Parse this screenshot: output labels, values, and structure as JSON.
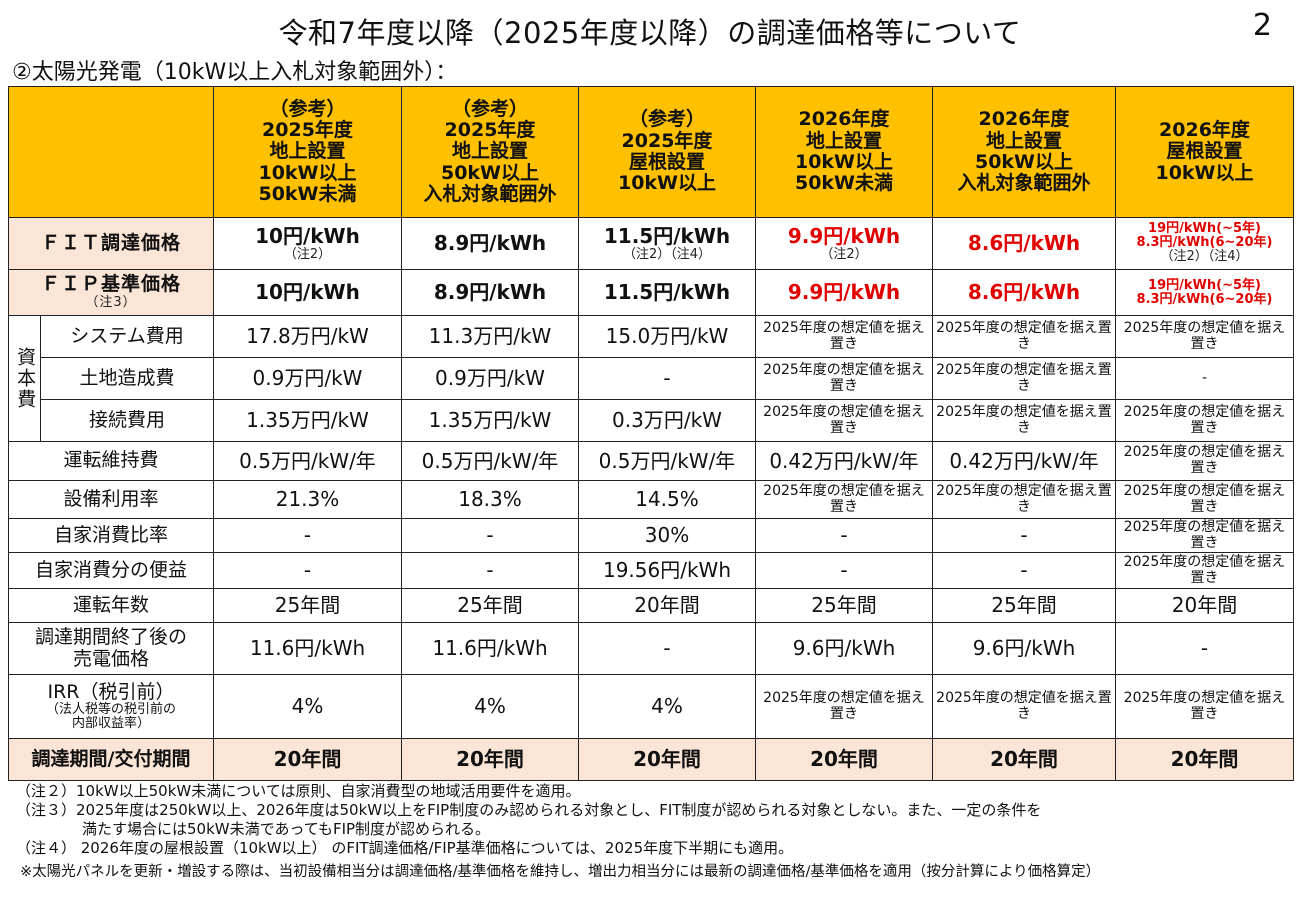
{
  "title": "令和7年度以降（2025年度以降）の調達価格等について",
  "page_number": "2",
  "subtitle": "②太陽光発電（10kW以上入札対象範囲外）：",
  "columns": [
    {
      "l1": "（参考）",
      "l2": "2025年度",
      "l3": "地上設置",
      "l4": "10kW以上",
      "l5": "50kW未満"
    },
    {
      "l1": "（参考）",
      "l2": "2025年度",
      "l3": "地上設置",
      "l4": "50kW以上",
      "l5": "入札対象範囲外"
    },
    {
      "l1": "（参考）",
      "l2": "2025年度",
      "l3": "屋根設置",
      "l4": "10kW以上",
      "l5": ""
    },
    {
      "l1": "2026年度",
      "l2": "地上設置",
      "l3": "10kW以上",
      "l4": "50kW未満",
      "l5": ""
    },
    {
      "l1": "2026年度",
      "l2": "地上設置",
      "l3": "50kW以上",
      "l4": "入札対象範囲外",
      "l5": ""
    },
    {
      "l1": "2026年度",
      "l2": "屋根設置",
      "l3": "10kW以上",
      "l4": "",
      "l5": ""
    }
  ],
  "rows": {
    "fit": {
      "label": "ＦＩＴ調達価格",
      "c1": "10円/kWh",
      "c1_note": "（注2）",
      "c2": "8.9円/kWh",
      "c3": "11.5円/kWh",
      "c3_note": "（注2）（注4）",
      "c4": "9.9円/kWh",
      "c4_note": "（注2）",
      "c5": "8.6円/kWh",
      "c6_l1": "19円/kWh(~5年)",
      "c6_l2": "8.3円/kWh(6~20年)",
      "c6_note": "（注2）（注4）"
    },
    "fip": {
      "label": "ＦＩＰ基準価格",
      "label_note": "（注3）",
      "c1": "10円/kWh",
      "c2": "8.9円/kWh",
      "c3": "11.5円/kWh",
      "c4": "9.9円/kWh",
      "c5": "8.6円/kWh",
      "c6_l1": "19円/kWh(~5年)",
      "c6_l2": "8.3円/kWh(6~20年)"
    },
    "capital_group": "資本費",
    "system": {
      "label": "システム費用",
      "c1": "17.8万円/kW",
      "c2": "11.3万円/kW",
      "c3": "15.0万円/kW",
      "c4": "2025年度の想定値を据え置き",
      "c5": "2025年度の想定値を据え置き",
      "c6": "2025年度の想定値を据え置き"
    },
    "land": {
      "label": "土地造成費",
      "c1": "0.9万円/kW",
      "c2": "0.9万円/kW",
      "c3": "-",
      "c4": "2025年度の想定値を据え置き",
      "c5": "2025年度の想定値を据え置き",
      "c6": "-"
    },
    "connect": {
      "label": "接続費用",
      "c1": "1.35万円/kW",
      "c2": "1.35万円/kW",
      "c3": "0.3万円/kW",
      "c4": "2025年度の想定値を据え置き",
      "c5": "2025年度の想定値を据え置き",
      "c6": "2025年度の想定値を据え置き"
    },
    "om": {
      "label": "運転維持費",
      "c1": "0.5万円/kW/年",
      "c2": "0.5万円/kW/年",
      "c3": "0.5万円/kW/年",
      "c4": "0.42万円/kW/年",
      "c5": "0.42万円/kW/年",
      "c6": "2025年度の想定値を据え置き"
    },
    "capacity": {
      "label": "設備利用率",
      "c1": "21.3%",
      "c2": "18.3%",
      "c3": "14.5%",
      "c4": "2025年度の想定値を据え置き",
      "c5": "2025年度の想定値を据え置き",
      "c6": "2025年度の想定値を据え置き"
    },
    "selfratio": {
      "label": "自家消費比率",
      "c1": "-",
      "c2": "-",
      "c3": "30%",
      "c4": "-",
      "c5": "-",
      "c6": "2025年度の想定値を据え置き"
    },
    "selfbenefit": {
      "label": "自家消費分の便益",
      "c1": "-",
      "c2": "-",
      "c3": "19.56円/kWh",
      "c4": "-",
      "c5": "-",
      "c6": "2025年度の想定値を据え置き"
    },
    "years": {
      "label": "運転年数",
      "c1": "25年間",
      "c2": "25年間",
      "c3": "20年間",
      "c4": "25年間",
      "c5": "25年間",
      "c6": "20年間"
    },
    "after": {
      "label_l1": "調達期間終了後の",
      "label_l2": "売電価格",
      "c1": "11.6円/kWh",
      "c2": "11.6円/kWh",
      "c3": "-",
      "c4": "9.6円/kWh",
      "c5": "9.6円/kWh",
      "c6": "-"
    },
    "irr": {
      "label": "IRR（税引前）",
      "label_sub1": "（法人税等の税引前の",
      "label_sub2": "内部収益率）",
      "c1": "4%",
      "c2": "4%",
      "c3": "4%",
      "c4": "2025年度の想定値を据え置き",
      "c5": "2025年度の想定値を据え置き",
      "c6": "2025年度の想定値を据え置き"
    },
    "period": {
      "label": "調達期間/交付期間",
      "c1": "20年間",
      "c2": "20年間",
      "c3": "20年間",
      "c4": "20年間",
      "c5": "20年間",
      "c6": "20年間"
    }
  },
  "notes": {
    "n2": "（注２）10kW以上50kW未満については原則、自家消費型の地域活用要件を適用。",
    "n3_l1": "（注３）2025年度は250kW以上、2026年度は50kW以上をFIP制度のみ認められる対象とし、FIT制度が認められる対象としない。また、一定の条件を",
    "n3_l2": "満たす場合には50kW未満であってもFIP制度が認められる。",
    "n4": "（注４） 2026年度の屋根設置（10kW以上） のFIT調達価格/FIP基準価格については、2025年度下半期にも適用。",
    "last": "※太陽光パネルを更新・増設する際は、当初設備相当分は調達価格/基準価格を維持し、増出力相当分には最新の調達価格/基準価格を適用（按分計算により価格算定）"
  }
}
